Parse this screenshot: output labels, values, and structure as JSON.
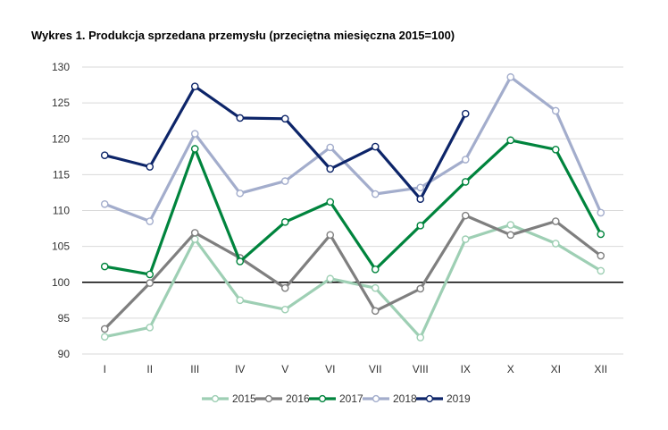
{
  "chart_data": {
    "type": "line",
    "title": "Wykres 1. Produkcja sprzedana przemysłu (przeciętna miesięczna 2015=100)",
    "xlabel": "",
    "ylabel": "",
    "categories": [
      "I",
      "II",
      "III",
      "IV",
      "V",
      "VI",
      "VII",
      "VIII",
      "IX",
      "X",
      "XI",
      "XII"
    ],
    "ylim": [
      90,
      130
    ],
    "yticks": [
      "90",
      "95",
      "100",
      "105",
      "110",
      "115",
      "120",
      "125",
      "130"
    ],
    "reference_line": 100,
    "grid": "horizontal",
    "legend_position": "bottom",
    "series": [
      {
        "name": "2015",
        "color": "#9ecfb4",
        "values": [
          92.4,
          93.7,
          106.0,
          97.5,
          96.2,
          100.5,
          99.2,
          92.3,
          106.0,
          108.0,
          105.4,
          101.6
        ]
      },
      {
        "name": "2016",
        "color": "#7f7f7f",
        "values": [
          93.5,
          99.9,
          106.9,
          103.4,
          99.2,
          106.6,
          96.0,
          99.1,
          109.3,
          106.6,
          108.5,
          103.7
        ]
      },
      {
        "name": "2017",
        "color": "#00843d",
        "values": [
          102.2,
          101.1,
          118.6,
          102.9,
          108.4,
          111.2,
          101.8,
          107.9,
          114.0,
          119.8,
          118.5,
          106.7
        ]
      },
      {
        "name": "2018",
        "color": "#a3adcc",
        "values": [
          110.9,
          108.5,
          120.7,
          112.4,
          114.1,
          118.8,
          112.3,
          113.2,
          117.1,
          128.6,
          123.9,
          109.7
        ]
      },
      {
        "name": "2019",
        "color": "#0d2569",
        "values": [
          117.7,
          116.1,
          127.3,
          122.9,
          122.8,
          115.8,
          118.9,
          111.6,
          123.5,
          null,
          null,
          null
        ]
      }
    ]
  }
}
